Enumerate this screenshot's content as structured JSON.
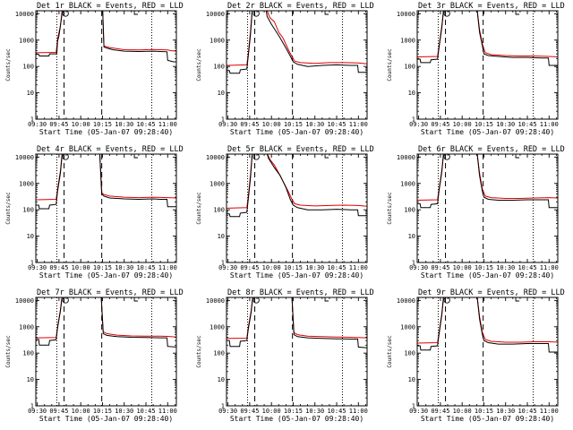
{
  "colors": {
    "events": "#000000",
    "lld": "#e00000",
    "axes": "#000000",
    "background": "#ffffff"
  },
  "shared_axes": {
    "xlabel": "Start Time (05-Jan-07 09:28:40)",
    "ylabel": "Counts/sec",
    "x_ticks": [
      "09:30",
      "09:45",
      "10:00",
      "10:15",
      "10:30",
      "10:45",
      "11:00"
    ],
    "x_tick_minutes": [
      30,
      45,
      60,
      75,
      90,
      105,
      120
    ],
    "y_ticks": [
      "1",
      "10",
      "100",
      "1000",
      "10000"
    ],
    "y_tick_values": [
      1,
      10,
      100,
      1000,
      10000
    ]
  },
  "chart_data": [
    {
      "type": "line",
      "title": "Det 1r BLACK = Events, RED = LLD",
      "xlim_minutes": [
        29,
        126
      ],
      "ylim": [
        1,
        13000
      ],
      "yscale": "log",
      "markers": {
        "dashed_x": [
          48.5,
          74.5
        ],
        "dotted_x": [
          43.5,
          109
        ]
      },
      "series": [
        {
          "name": "BLACK = Events",
          "color": "#000000",
          "x": [
            29,
            31,
            31.5,
            38,
            38.5,
            43,
            43.5,
            44,
            45,
            46,
            47,
            47.5,
            75,
            76,
            78,
            82,
            90,
            100,
            110,
            115,
            119.5,
            120,
            124,
            126
          ],
          "y": [
            290,
            290,
            250,
            250,
            300,
            300,
            320,
            900,
            1500,
            3500,
            9000,
            20000,
            20000,
            550,
            500,
            430,
            380,
            370,
            380,
            370,
            360,
            170,
            150,
            150
          ]
        },
        {
          "name": "RED = LLD",
          "color": "#e00000",
          "x": [
            29,
            43,
            44,
            46,
            47.5,
            75,
            76,
            80,
            90,
            100,
            110,
            120,
            122,
            126
          ],
          "y": [
            330,
            340,
            1100,
            3500,
            20000,
            20000,
            600,
            520,
            430,
            420,
            440,
            420,
            400,
            380
          ]
        }
      ]
    },
    {
      "type": "line",
      "title": "Det 2r BLACK = Events, RED = LLD",
      "xlim_minutes": [
        29,
        126
      ],
      "ylim": [
        1,
        13000
      ],
      "yscale": "log",
      "markers": {
        "dashed_x": [
          48.5,
          74.5
        ],
        "dotted_x": [
          43.5,
          109
        ]
      },
      "series": [
        {
          "name": "BLACK = Events",
          "color": "#000000",
          "x": [
            29,
            31,
            31.5,
            38,
            38.5,
            43,
            44,
            45.5,
            47,
            56,
            57,
            60,
            65,
            70,
            73,
            75,
            78,
            85,
            95,
            105,
            115,
            119.5,
            120,
            126
          ],
          "y": [
            70,
            70,
            55,
            55,
            75,
            80,
            250,
            1500,
            20000,
            20000,
            8000,
            4000,
            1500,
            500,
            250,
            150,
            120,
            100,
            110,
            115,
            110,
            110,
            60,
            60
          ]
        },
        {
          "name": "RED = LLD",
          "color": "#e00000",
          "x": [
            29,
            43,
            44,
            45.5,
            47,
            57,
            59,
            62,
            65,
            68,
            72,
            74,
            76,
            80,
            90,
            100,
            110,
            120,
            126
          ],
          "y": [
            110,
            115,
            300,
            2000,
            20000,
            13000,
            7000,
            5000,
            2000,
            1200,
            400,
            250,
            160,
            140,
            130,
            140,
            140,
            135,
            125
          ]
        }
      ]
    },
    {
      "type": "line",
      "title": "Det 3r BLACK = Events, RED = LLD",
      "xlim_minutes": [
        29,
        126
      ],
      "ylim": [
        1,
        13000
      ],
      "yscale": "log",
      "markers": {
        "dashed_x": [
          48.5,
          74.5
        ],
        "dotted_x": [
          43.5,
          109
        ]
      },
      "series": [
        {
          "name": "BLACK = Events",
          "color": "#000000",
          "x": [
            29,
            31,
            31.5,
            38,
            38.5,
            43,
            44,
            46,
            47.5,
            70,
            72,
            74,
            75,
            78,
            85,
            95,
            105,
            115,
            119.5,
            120,
            126
          ],
          "y": [
            190,
            190,
            140,
            140,
            180,
            190,
            500,
            3000,
            20000,
            20000,
            2000,
            600,
            300,
            260,
            240,
            220,
            220,
            210,
            210,
            110,
            110
          ]
        },
        {
          "name": "RED = LLD",
          "color": "#e00000",
          "x": [
            29,
            43,
            44,
            46,
            47.5,
            70,
            72,
            74,
            76,
            80,
            90,
            100,
            110,
            120,
            126
          ],
          "y": [
            230,
            240,
            600,
            3500,
            20000,
            20000,
            2500,
            700,
            330,
            280,
            260,
            250,
            250,
            240,
            230
          ]
        }
      ]
    },
    {
      "type": "line",
      "title": "Det 4r BLACK = Events, RED = LLD",
      "xlim_minutes": [
        29,
        126
      ],
      "ylim": [
        1,
        13000
      ],
      "yscale": "log",
      "markers": {
        "dashed_x": [
          48.5,
          74.5
        ],
        "dotted_x": [
          43.5,
          109
        ]
      },
      "series": [
        {
          "name": "BLACK = Events",
          "color": "#000000",
          "x": [
            29,
            31,
            31.5,
            38,
            38.5,
            43,
            44,
            46,
            47.5,
            73,
            74.5,
            76,
            80,
            90,
            100,
            110,
            115,
            119.5,
            120,
            126
          ],
          "y": [
            150,
            150,
            110,
            110,
            150,
            160,
            500,
            2500,
            20000,
            20000,
            400,
            330,
            280,
            260,
            250,
            260,
            250,
            250,
            130,
            130
          ]
        },
        {
          "name": "RED = LLD",
          "color": "#e00000",
          "x": [
            29,
            43,
            44,
            46,
            47.5,
            73,
            74.5,
            76,
            80,
            90,
            100,
            110,
            120,
            126
          ],
          "y": [
            240,
            250,
            600,
            3000,
            20000,
            20000,
            450,
            380,
            330,
            300,
            290,
            300,
            290,
            280
          ]
        }
      ]
    },
    {
      "type": "line",
      "title": "Det 5r BLACK = Events, RED = LLD",
      "xlim_minutes": [
        29,
        126
      ],
      "ylim": [
        1,
        13000
      ],
      "yscale": "log",
      "markers": {
        "dashed_x": [
          48.5,
          74.5
        ],
        "dotted_x": [
          43.5,
          109
        ]
      },
      "series": [
        {
          "name": "BLACK = Events",
          "color": "#000000",
          "x": [
            29,
            31,
            31.5,
            38,
            38.5,
            43,
            44,
            45.5,
            47,
            56,
            58,
            62,
            66,
            70,
            73,
            75,
            78,
            85,
            95,
            105,
            115,
            119.5,
            120,
            126
          ],
          "y": [
            70,
            70,
            55,
            55,
            75,
            80,
            250,
            1500,
            20000,
            20000,
            9000,
            4000,
            2000,
            700,
            250,
            150,
            120,
            100,
            100,
            105,
            100,
            100,
            60,
            60
          ]
        },
        {
          "name": "RED = LLD",
          "color": "#e00000",
          "x": [
            29,
            43,
            44,
            45.5,
            47,
            57,
            59,
            62,
            65,
            68,
            72,
            74,
            76,
            80,
            90,
            100,
            110,
            120,
            126
          ],
          "y": [
            115,
            120,
            320,
            2000,
            20000,
            14000,
            8000,
            5000,
            2500,
            1200,
            450,
            260,
            170,
            150,
            140,
            145,
            150,
            145,
            135
          ]
        }
      ]
    },
    {
      "type": "line",
      "title": "Det 6r BLACK = Events, RED = LLD",
      "xlim_minutes": [
        29,
        126
      ],
      "ylim": [
        1,
        13000
      ],
      "yscale": "log",
      "markers": {
        "dashed_x": [
          48.5,
          74.5
        ],
        "dotted_x": [
          43.5,
          109
        ]
      },
      "series": [
        {
          "name": "BLACK = Events",
          "color": "#000000",
          "x": [
            29,
            31,
            31.5,
            38,
            38.5,
            43,
            44,
            46,
            47.5,
            70,
            72,
            74,
            75,
            78,
            85,
            95,
            105,
            115,
            119.5,
            120,
            126
          ],
          "y": [
            170,
            170,
            120,
            120,
            160,
            170,
            500,
            2800,
            20000,
            20000,
            2000,
            500,
            300,
            250,
            230,
            230,
            240,
            240,
            240,
            120,
            120
          ]
        },
        {
          "name": "RED = LLD",
          "color": "#e00000",
          "x": [
            29,
            43,
            44,
            46,
            47.5,
            70,
            72,
            74,
            76,
            80,
            90,
            100,
            110,
            120,
            126
          ],
          "y": [
            230,
            240,
            600,
            3200,
            20000,
            20000,
            2500,
            600,
            330,
            290,
            270,
            270,
            280,
            290,
            280
          ]
        }
      ]
    },
    {
      "type": "line",
      "title": "Det 7r BLACK = Events, RED = LLD",
      "xlim_minutes": [
        29,
        126
      ],
      "ylim": [
        1,
        13000
      ],
      "yscale": "log",
      "markers": {
        "dashed_x": [
          48.5,
          74.5
        ],
        "dotted_x": [
          43.5,
          109
        ]
      },
      "series": [
        {
          "name": "BLACK = Events",
          "color": "#000000",
          "x": [
            29,
            31,
            31.5,
            38,
            38.5,
            43,
            44,
            46,
            47.5,
            74,
            75.5,
            78,
            85,
            95,
            105,
            115,
            119.5,
            120,
            126
          ],
          "y": [
            330,
            330,
            200,
            200,
            300,
            320,
            900,
            4000,
            20000,
            20000,
            550,
            470,
            420,
            400,
            390,
            380,
            380,
            180,
            170
          ]
        },
        {
          "name": "RED = LLD",
          "color": "#e00000",
          "x": [
            29,
            43,
            44,
            46,
            47.5,
            74,
            75.5,
            78,
            85,
            95,
            105,
            115,
            120,
            126
          ],
          "y": [
            380,
            390,
            1000,
            4500,
            20000,
            20000,
            650,
            550,
            480,
            450,
            440,
            440,
            430,
            410
          ]
        }
      ]
    },
    {
      "type": "line",
      "title": "Det 8r BLACK = Events, RED = LLD",
      "xlim_minutes": [
        29,
        126
      ],
      "ylim": [
        1,
        13000
      ],
      "yscale": "log",
      "markers": {
        "dashed_x": [
          48.5,
          74.5
        ],
        "dotted_x": [
          43.5,
          109
        ]
      },
      "series": [
        {
          "name": "BLACK = Events",
          "color": "#000000",
          "x": [
            29,
            31,
            31.5,
            38,
            38.5,
            43,
            44,
            46,
            47.5,
            74,
            75.5,
            78,
            85,
            95,
            105,
            115,
            119.5,
            120,
            126
          ],
          "y": [
            300,
            300,
            180,
            180,
            280,
            300,
            800,
            3500,
            20000,
            20000,
            500,
            420,
            380,
            360,
            350,
            340,
            340,
            170,
            160
          ]
        },
        {
          "name": "RED = LLD",
          "color": "#e00000",
          "x": [
            29,
            43,
            44,
            46,
            47.5,
            74,
            75.5,
            78,
            85,
            95,
            105,
            115,
            120,
            126
          ],
          "y": [
            360,
            370,
            950,
            4000,
            20000,
            20000,
            600,
            500,
            440,
            420,
            410,
            400,
            390,
            380
          ]
        }
      ]
    },
    {
      "type": "line",
      "title": "Det 9r BLACK = Events, RED = LLD",
      "xlim_minutes": [
        29,
        126
      ],
      "ylim": [
        1,
        13000
      ],
      "yscale": "log",
      "markers": {
        "dashed_x": [
          48.5,
          74.5
        ],
        "dotted_x": [
          43.5,
          109
        ]
      },
      "series": [
        {
          "name": "BLACK = Events",
          "color": "#000000",
          "x": [
            29,
            31,
            31.5,
            38,
            38.5,
            43,
            44,
            46,
            47.5,
            70,
            72,
            74,
            75,
            78,
            85,
            95,
            105,
            115,
            119.5,
            120,
            126
          ],
          "y": [
            190,
            190,
            130,
            130,
            180,
            190,
            500,
            2800,
            20000,
            20000,
            2000,
            500,
            300,
            250,
            220,
            220,
            230,
            230,
            230,
            110,
            110
          ]
        },
        {
          "name": "RED = LLD",
          "color": "#e00000",
          "x": [
            29,
            43,
            44,
            46,
            47.5,
            70,
            72,
            74,
            76,
            80,
            90,
            100,
            110,
            120,
            126
          ],
          "y": [
            240,
            250,
            600,
            3200,
            20000,
            20000,
            2500,
            600,
            330,
            280,
            260,
            260,
            270,
            270,
            260
          ]
        }
      ]
    }
  ]
}
